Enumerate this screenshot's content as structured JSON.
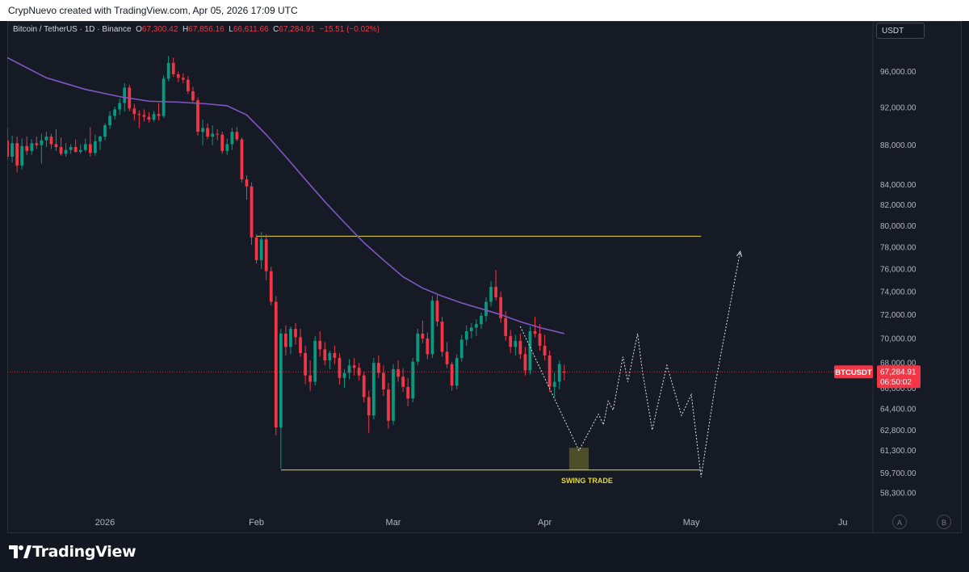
{
  "header": {
    "title": "CrypNuevo created with TradingView.com, Apr 05, 2026 17:09 UTC"
  },
  "symbol": {
    "name": "Bitcoin / TetherUS · 1D · Binance",
    "open_label": "O",
    "open": "67,300.42",
    "high_label": "H",
    "high": "67,856.16",
    "low_label": "L",
    "low": "66,611.66",
    "close_label": "C",
    "close": "67,284.91",
    "change": "−15.51 (−0.02%)"
  },
  "currency_button": "USDT",
  "price_badge": {
    "ticker": "BTCUSDT",
    "price": "67,284.91",
    "countdown": "06:50:02"
  },
  "annotation": {
    "label": "SWING TRADE"
  },
  "buttons": {
    "a": "A",
    "b": "B"
  },
  "branding": {
    "name": "TradingView"
  },
  "colors": {
    "background": "#131722",
    "up": "#089981",
    "down": "#f23645",
    "moving_average": "#7e57c2",
    "level_line": "#e2d93b",
    "projection": "#e0e3eb"
  },
  "chart_data": {
    "type": "candlestick",
    "interval": "1D",
    "y_scale": "log",
    "ylim": [
      57200,
      100000
    ],
    "y_ticks": [
      "96,000.00",
      "92,000.00",
      "88,000.00",
      "84,000.00",
      "82,000.00",
      "80,000.00",
      "78,000.00",
      "76,000.00",
      "74,000.00",
      "72,000.00",
      "70,000.00",
      "68,000.00",
      "66,000.00",
      "64,400.00",
      "62,800.00",
      "61,300.00",
      "59,700.00",
      "58,300.00"
    ],
    "x_ticks": [
      "2026",
      "Feb",
      "Mar",
      "Apr",
      "May",
      "Ju"
    ],
    "x_tick_dates": [
      "2026-01-01",
      "2026-02-01",
      "2026-03-01",
      "2026-04-01",
      "2026-05-01",
      "2026-06-01"
    ],
    "xlim": [
      "2025-12-12",
      "2026-06-07"
    ],
    "candles": [
      [
        "2025-12-12",
        88500,
        89800,
        86500,
        86800
      ],
      [
        "2025-12-13",
        86800,
        89000,
        86200,
        88200
      ],
      [
        "2025-12-14",
        88200,
        88900,
        85200,
        85900
      ],
      [
        "2025-12-15",
        85900,
        88700,
        85500,
        87900
      ],
      [
        "2025-12-16",
        87900,
        88900,
        87000,
        87400
      ],
      [
        "2025-12-17",
        87400,
        88600,
        87000,
        88200
      ],
      [
        "2025-12-18",
        88200,
        88900,
        87600,
        88000
      ],
      [
        "2025-12-19",
        88000,
        89200,
        86100,
        88500
      ],
      [
        "2025-12-20",
        88500,
        89400,
        87800,
        88900
      ],
      [
        "2025-12-21",
        88900,
        89200,
        87600,
        88100
      ],
      [
        "2025-12-22",
        88100,
        89700,
        87400,
        87800
      ],
      [
        "2025-12-23",
        87800,
        88800,
        86900,
        87100
      ],
      [
        "2025-12-24",
        87100,
        88200,
        86800,
        87500
      ],
      [
        "2025-12-25",
        87500,
        88100,
        87100,
        87800
      ],
      [
        "2025-12-26",
        87800,
        88600,
        87200,
        87300
      ],
      [
        "2025-12-27",
        87300,
        88100,
        87100,
        87500
      ],
      [
        "2025-12-28",
        87500,
        88700,
        87300,
        88100
      ],
      [
        "2025-12-29",
        88100,
        89900,
        86800,
        87200
      ],
      [
        "2025-12-30",
        87200,
        89100,
        86900,
        88400
      ],
      [
        "2025-12-31",
        88400,
        89000,
        87500,
        88900
      ],
      [
        "2026-01-01",
        88900,
        90300,
        88500,
        90100
      ],
      [
        "2026-01-02",
        90100,
        91600,
        89700,
        91100
      ],
      [
        "2026-01-03",
        91100,
        92100,
        90700,
        91800
      ],
      [
        "2026-01-04",
        91800,
        93000,
        91200,
        92500
      ],
      [
        "2026-01-05",
        92500,
        94700,
        91600,
        94200
      ],
      [
        "2026-01-06",
        94200,
        94500,
        91600,
        91900
      ],
      [
        "2026-01-07",
        91900,
        92400,
        90600,
        91300
      ],
      [
        "2026-01-08",
        91300,
        91700,
        89800,
        91200
      ],
      [
        "2026-01-09",
        91200,
        91800,
        90500,
        91000
      ],
      [
        "2026-01-10",
        91000,
        91500,
        90400,
        90700
      ],
      [
        "2026-01-11",
        90700,
        91600,
        90500,
        91300
      ],
      [
        "2026-01-12",
        91300,
        92500,
        90600,
        91100
      ],
      [
        "2026-01-13",
        91100,
        95600,
        90900,
        95200
      ],
      [
        "2026-01-14",
        95200,
        97800,
        94900,
        97000
      ],
      [
        "2026-01-15",
        97000,
        97600,
        95400,
        95700
      ],
      [
        "2026-01-16",
        95700,
        96000,
        94800,
        95300
      ],
      [
        "2026-01-17",
        95300,
        95800,
        94700,
        95100
      ],
      [
        "2026-01-18",
        95100,
        95500,
        93500,
        93800
      ],
      [
        "2026-01-19",
        93800,
        94300,
        92600,
        92800
      ],
      [
        "2026-01-20",
        92800,
        93100,
        89000,
        89400
      ],
      [
        "2026-01-21",
        89400,
        90700,
        88000,
        89800
      ],
      [
        "2026-01-22",
        89800,
        90300,
        88600,
        88900
      ],
      [
        "2026-01-23",
        88900,
        90100,
        88000,
        89200
      ],
      [
        "2026-01-24",
        89200,
        89700,
        88500,
        89100
      ],
      [
        "2026-01-25",
        89100,
        89400,
        87100,
        87400
      ],
      [
        "2026-01-26",
        87400,
        88700,
        87000,
        88100
      ],
      [
        "2026-01-27",
        88100,
        89800,
        87500,
        89400
      ],
      [
        "2026-01-28",
        89400,
        89900,
        88400,
        88600
      ],
      [
        "2026-01-29",
        88600,
        88800,
        84200,
        84500
      ],
      [
        "2026-01-30",
        84500,
        84900,
        82500,
        83800
      ],
      [
        "2026-01-31",
        83800,
        84200,
        78200,
        78900
      ],
      [
        "2026-02-01",
        78900,
        79200,
        76500,
        76800
      ],
      [
        "2026-02-02",
        76800,
        79400,
        76000,
        78700
      ],
      [
        "2026-02-03",
        78700,
        79200,
        75000,
        75800
      ],
      [
        "2026-02-04",
        75800,
        76200,
        72800,
        73100
      ],
      [
        "2026-02-05",
        73100,
        73600,
        62400,
        63000
      ],
      [
        "2026-02-06",
        63000,
        70800,
        60000,
        70400
      ],
      [
        "2026-02-07",
        70400,
        71100,
        68600,
        69300
      ],
      [
        "2026-02-08",
        69300,
        71000,
        68700,
        70800
      ],
      [
        "2026-02-09",
        70800,
        71300,
        69500,
        70100
      ],
      [
        "2026-02-10",
        70100,
        70800,
        68500,
        68800
      ],
      [
        "2026-02-11",
        68800,
        69400,
        66300,
        67000
      ],
      [
        "2026-02-12",
        67000,
        68200,
        65800,
        66500
      ],
      [
        "2026-02-13",
        66500,
        70200,
        66200,
        69800
      ],
      [
        "2026-02-14",
        69800,
        70600,
        68500,
        69100
      ],
      [
        "2026-02-15",
        69100,
        69700,
        67800,
        68200
      ],
      [
        "2026-02-16",
        68200,
        69000,
        67500,
        68800
      ],
      [
        "2026-02-17",
        68800,
        69400,
        67900,
        68400
      ],
      [
        "2026-02-18",
        68400,
        68800,
        66300,
        66800
      ],
      [
        "2026-02-19",
        66800,
        67500,
        66000,
        67200
      ],
      [
        "2026-02-20",
        67200,
        68300,
        66700,
        67800
      ],
      [
        "2026-02-21",
        67800,
        68400,
        67000,
        67600
      ],
      [
        "2026-02-22",
        67600,
        68000,
        66600,
        67000
      ],
      [
        "2026-02-23",
        67000,
        67300,
        64900,
        65300
      ],
      [
        "2026-02-24",
        65300,
        65800,
        62600,
        63900
      ],
      [
        "2026-02-25",
        63900,
        68400,
        63600,
        68000
      ],
      [
        "2026-02-26",
        68000,
        68600,
        66800,
        67200
      ],
      [
        "2026-02-27",
        67200,
        67800,
        65400,
        65900
      ],
      [
        "2026-02-28",
        65900,
        66400,
        62900,
        63500
      ],
      [
        "2026-03-01",
        63500,
        67900,
        63200,
        67500
      ],
      [
        "2026-03-02",
        67500,
        68200,
        66500,
        66900
      ],
      [
        "2026-03-03",
        66900,
        67600,
        65700,
        66100
      ],
      [
        "2026-03-04",
        66100,
        66800,
        64600,
        65200
      ],
      [
        "2026-03-05",
        65200,
        68400,
        64900,
        68100
      ],
      [
        "2026-03-06",
        68100,
        70800,
        67800,
        70400
      ],
      [
        "2026-03-07",
        70400,
        71500,
        69600,
        70000
      ],
      [
        "2026-03-08",
        70000,
        70500,
        68300,
        68700
      ],
      [
        "2026-03-09",
        68700,
        73600,
        68400,
        73200
      ],
      [
        "2026-03-10",
        73200,
        73700,
        71000,
        71400
      ],
      [
        "2026-03-11",
        71400,
        71800,
        68500,
        68900
      ],
      [
        "2026-03-12",
        68900,
        69700,
        67600,
        67900
      ],
      [
        "2026-03-13",
        67900,
        68100,
        65800,
        66200
      ],
      [
        "2026-03-14",
        66200,
        68700,
        65900,
        68400
      ],
      [
        "2026-03-15",
        68400,
        70300,
        68100,
        69900
      ],
      [
        "2026-03-16",
        69900,
        71100,
        69400,
        70600
      ],
      [
        "2026-03-17",
        70600,
        71300,
        70000,
        70900
      ],
      [
        "2026-03-18",
        70900,
        71600,
        70200,
        71200
      ],
      [
        "2026-03-19",
        71200,
        72200,
        70800,
        71900
      ],
      [
        "2026-03-20",
        71900,
        73500,
        71400,
        73100
      ],
      [
        "2026-03-21",
        73100,
        74900,
        72700,
        74400
      ],
      [
        "2026-03-22",
        74400,
        75900,
        73200,
        73500
      ],
      [
        "2026-03-23",
        73500,
        74000,
        71300,
        71700
      ],
      [
        "2026-03-24",
        71700,
        72300,
        69800,
        70200
      ],
      [
        "2026-03-25",
        70200,
        70700,
        68800,
        69300
      ],
      [
        "2026-03-26",
        69300,
        70300,
        68600,
        69800
      ],
      [
        "2026-03-27",
        69800,
        70400,
        68300,
        68700
      ],
      [
        "2026-03-28",
        68700,
        69300,
        67000,
        67400
      ],
      [
        "2026-03-29",
        67400,
        71000,
        67100,
        70600
      ],
      [
        "2026-03-30",
        70600,
        71800,
        70100,
        70400
      ],
      [
        "2026-03-31",
        70400,
        71200,
        69000,
        69400
      ],
      [
        "2026-04-01",
        69400,
        70300,
        68200,
        68600
      ],
      [
        "2026-04-02",
        68600,
        69000,
        65700,
        66100
      ],
      [
        "2026-04-03",
        66100,
        67200,
        65300,
        66500
      ],
      [
        "2026-04-04",
        66500,
        68200,
        65900,
        67900
      ],
      [
        "2026-04-05",
        67300,
        67856.16,
        66611.66,
        67284.91
      ]
    ],
    "moving_average": {
      "x": [
        "2025-12-12",
        "2025-12-20",
        "2025-12-28",
        "2026-01-04",
        "2026-01-10",
        "2026-01-16",
        "2026-01-22",
        "2026-01-26",
        "2026-01-30",
        "2026-02-03",
        "2026-02-07",
        "2026-02-11",
        "2026-02-15",
        "2026-02-19",
        "2026-02-23",
        "2026-02-27",
        "2026-03-03",
        "2026-03-07",
        "2026-03-11",
        "2026-03-15",
        "2026-03-19",
        "2026-03-23",
        "2026-03-27",
        "2026-03-31",
        "2026-04-05"
      ],
      "y": [
        97600,
        95300,
        94000,
        93200,
        92700,
        92600,
        92400,
        92200,
        91200,
        89100,
        86800,
        84500,
        82300,
        80300,
        78400,
        76800,
        75300,
        74300,
        73600,
        73000,
        72500,
        72000,
        71400,
        70900,
        70400
      ]
    },
    "resistance_level": {
      "value": 79000,
      "from": "2026-02-01",
      "to": "2026-05-03"
    },
    "support_level": {
      "value": 59900,
      "from": "2026-02-06",
      "to": "2026-05-03"
    },
    "swing_trade_zone": {
      "x": [
        "2026-04-06",
        "2026-04-10"
      ],
      "y": [
        59900,
        61500
      ]
    },
    "projection_path": {
      "x": [
        "2026-03-27",
        "2026-04-08",
        "2026-04-12",
        "2026-04-13",
        "2026-04-14",
        "2026-04-15",
        "2026-04-17",
        "2026-04-18",
        "2026-04-20",
        "2026-04-21",
        "2026-04-23",
        "2026-04-24",
        "2026-04-26",
        "2026-04-29",
        "2026-05-01",
        "2026-05-03",
        "2026-05-06",
        "2026-05-11"
      ],
      "y": [
        71000,
        61300,
        64000,
        63200,
        65000,
        64300,
        68500,
        66500,
        70400,
        67300,
        62800,
        64500,
        67800,
        63900,
        65500,
        59400,
        66500,
        77600
      ]
    },
    "last_price": 67284.91
  }
}
